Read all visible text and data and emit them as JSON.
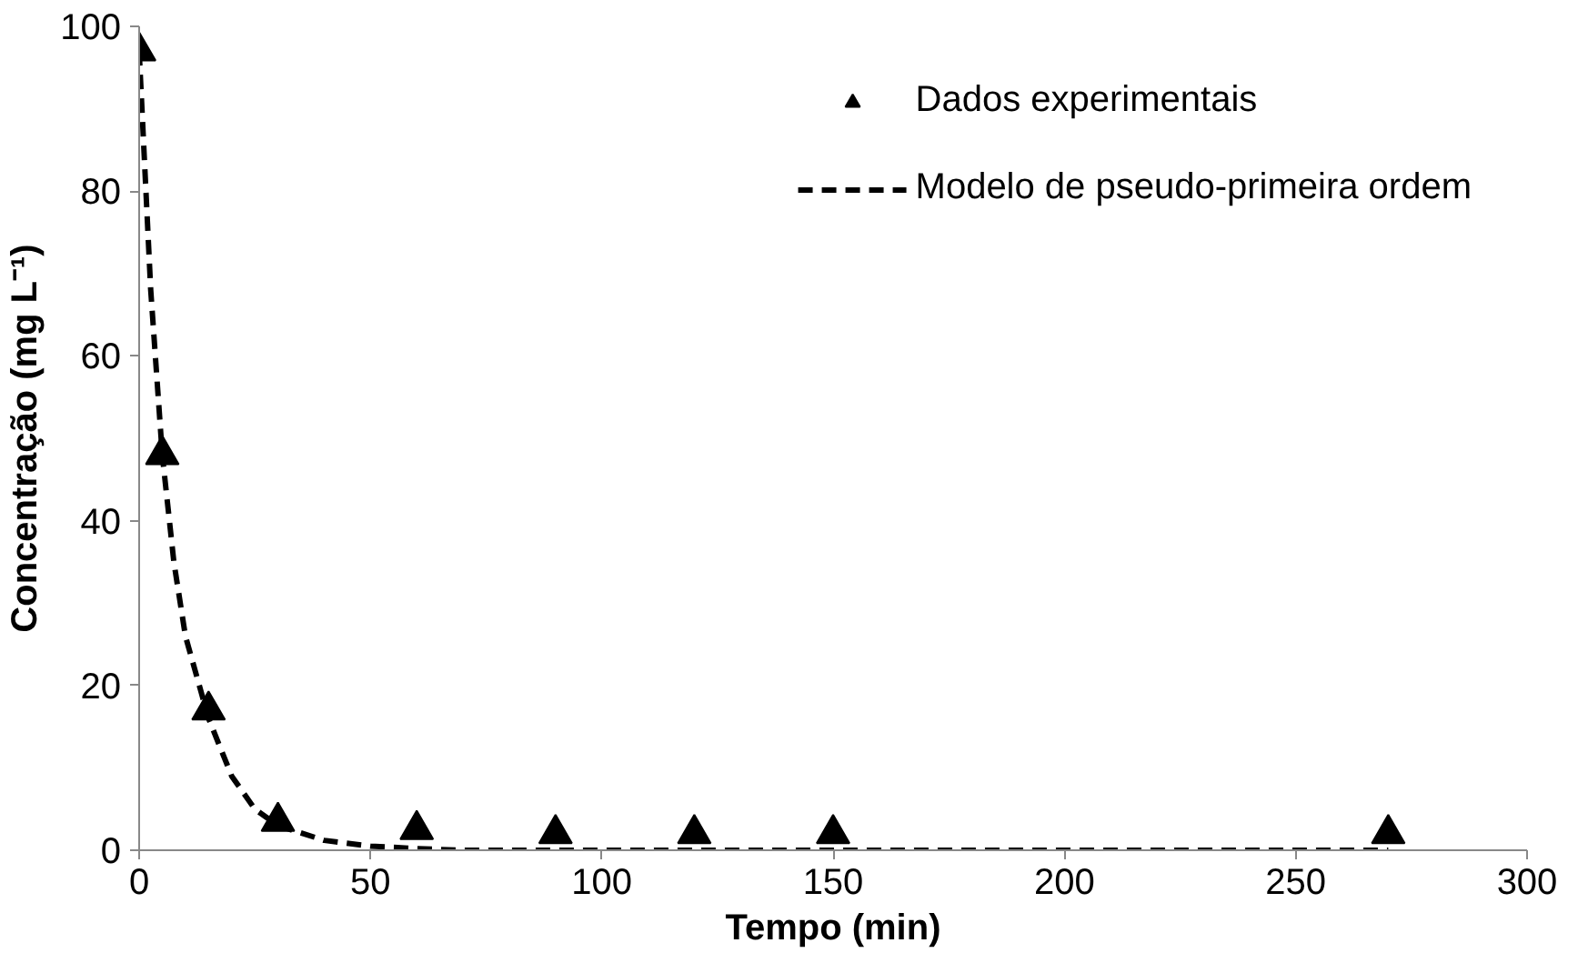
{
  "chart_data": {
    "type": "scatter",
    "xlabel": "Tempo (min)",
    "ylabel": "Concentração (mg L⁻¹)",
    "xlim": [
      0,
      300
    ],
    "xticks": [
      0,
      50,
      100,
      150,
      200,
      250,
      300
    ],
    "ylim": [
      0,
      100
    ],
    "yticks": [
      0,
      20,
      40,
      60,
      80,
      100
    ],
    "grid": false,
    "legend": "top right",
    "series": [
      {
        "name": "Dados experimentais",
        "marker": "triangle",
        "color": "#000000",
        "x": [
          0,
          5,
          15,
          30,
          60,
          90,
          120,
          150,
          270
        ],
        "values": [
          97,
          48,
          17,
          3.5,
          2.5,
          2,
          2,
          2,
          2
        ]
      },
      {
        "name": "Modelo de pseudo-primeira ordem",
        "type": "line",
        "line_style": "dashed",
        "marker": "none",
        "color": "#000000",
        "x": [
          0,
          2.5,
          5,
          7.5,
          10,
          15,
          20,
          25,
          30,
          40,
          50,
          60,
          70,
          100,
          150,
          200,
          270
        ],
        "values": [
          97,
          68,
          48,
          35,
          26,
          16,
          9,
          5,
          3,
          1.2,
          0.5,
          0.2,
          0,
          0,
          0,
          0,
          0
        ]
      }
    ]
  }
}
